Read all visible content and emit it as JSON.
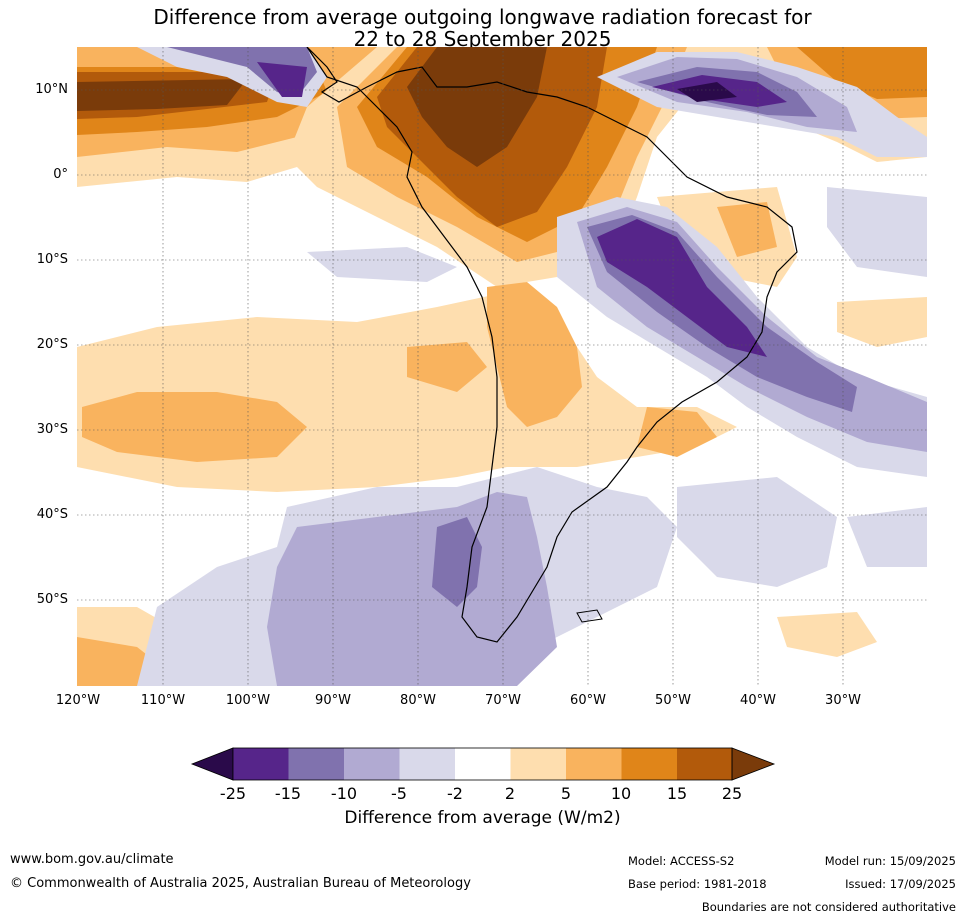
{
  "title": {
    "line1": "Difference from average outgoing longwave radiation forecast for",
    "line2": "22 to 28 September 2025"
  },
  "map": {
    "lat_labels": [
      "10°N",
      "0°",
      "10°S",
      "20°S",
      "30°S",
      "40°S",
      "50°S"
    ],
    "lon_labels": [
      "120°W",
      "110°W",
      "100°W",
      "90°W",
      "80°W",
      "70°W",
      "60°W",
      "50°W",
      "40°W",
      "30°W"
    ]
  },
  "colorbar": {
    "ticks": [
      "-25",
      "-15",
      "-10",
      "-5",
      "-2",
      "2",
      "5",
      "10",
      "15",
      "25"
    ],
    "colors": [
      "#2a0a4a",
      "#56258a",
      "#8072ae",
      "#b1aad2",
      "#d9d9ea",
      "#ffffff",
      "#fedeaf",
      "#f9b35e",
      "#e08519",
      "#b25a0b",
      "#7a3b0a"
    ],
    "label": "Difference from average (W/m2)"
  },
  "footer": {
    "website": "www.bom.gov.au/climate",
    "copyright": "© Commonwealth of Australia 2025, Australian Bureau of Meteorology",
    "model": "Model: ACCESS-S2",
    "base_period": "Base period: 1981-2018",
    "model_run": "Model run: 15/09/2025",
    "issued": "Issued: 17/09/2025",
    "disclaimer": "Boundaries are not considered authoritative"
  }
}
